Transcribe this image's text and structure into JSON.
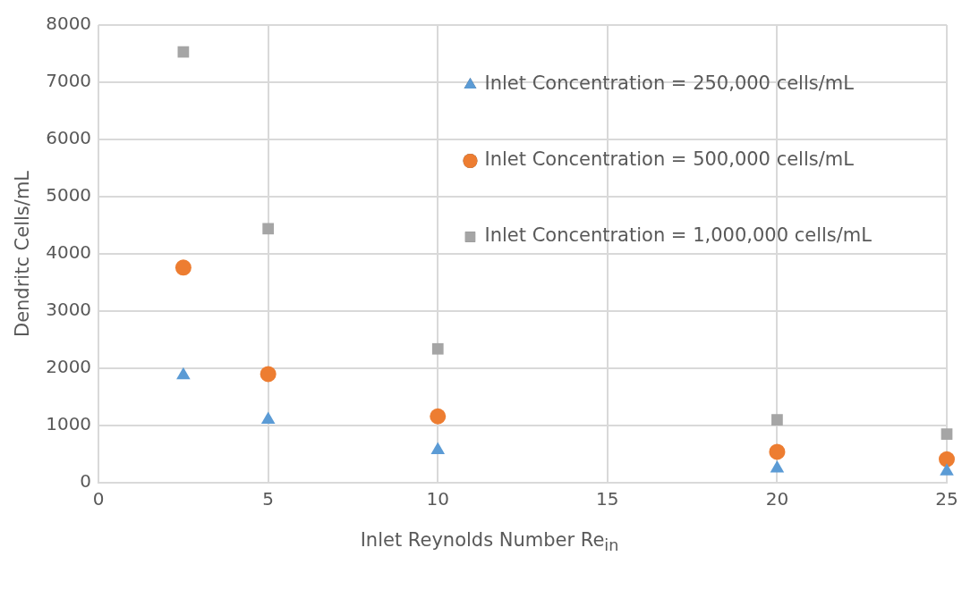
{
  "chart_data": {
    "type": "scatter",
    "xlabel": "Inlet Reynolds Number Re$_{in}$",
    "ylabel": "Dendritc Cells/mL",
    "x": [
      2.5,
      5,
      10,
      20,
      25
    ],
    "series": [
      {
        "name": "Inlet Concentration = 250,000 cells/mL",
        "color": "#5b9bd5",
        "marker": "triangle",
        "values": [
          1880,
          1100,
          570,
          250,
          200
        ]
      },
      {
        "name": "Inlet Concentration = 500,000 cells/mL",
        "color": "#ed7d31",
        "marker": "circle",
        "values": [
          3760,
          1900,
          1160,
          540,
          410
        ]
      },
      {
        "name": "Inlet Concentration = 1,000,000 cells/mL",
        "color": "#a5a5a5",
        "marker": "square",
        "values": [
          7530,
          4440,
          2340,
          1100,
          850
        ]
      }
    ],
    "xlim": [
      0,
      25
    ],
    "xticks": [
      0,
      5,
      10,
      15,
      20,
      25
    ],
    "ylim": [
      0,
      8000
    ],
    "yticks": [
      0,
      1000,
      2000,
      3000,
      4000,
      5000,
      6000,
      7000,
      8000
    ],
    "grid": true,
    "legend": "top right"
  }
}
